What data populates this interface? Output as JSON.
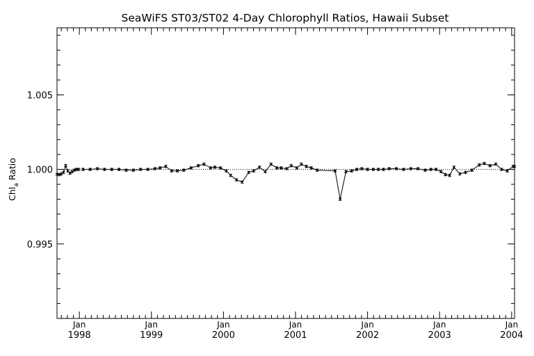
{
  "chart_data": {
    "type": "line",
    "title": "SeaWiFS ST03/ST02 4-Day Chlorophyll Ratios, Hawaii Subset",
    "ylabel_main": "Chl",
    "ylabel_sub": "a",
    "ylabel_rest": " Ratio",
    "xlabel": "",
    "ylim": [
      0.99,
      1.0095
    ],
    "xlim": [
      1997.69,
      2004.04
    ],
    "y_ticks": [
      {
        "value": 0.995,
        "label": "0.995"
      },
      {
        "value": 1.0,
        "label": "1.000"
      },
      {
        "value": 1.005,
        "label": "1.005"
      }
    ],
    "x_ticks": [
      {
        "value": 1998.0,
        "month": "Jan",
        "year": "1998"
      },
      {
        "value": 1999.0,
        "month": "Jan",
        "year": "1999"
      },
      {
        "value": 2000.0,
        "month": "Jan",
        "year": "2000"
      },
      {
        "value": 2001.0,
        "month": "Jan",
        "year": "2001"
      },
      {
        "value": 2002.0,
        "month": "Jan",
        "year": "2002"
      },
      {
        "value": 2003.0,
        "month": "Jan",
        "year": "2003"
      },
      {
        "value": 2004.0,
        "month": "Jan",
        "year": "2004"
      }
    ],
    "reference_line": 1.0,
    "grid": false,
    "series": [
      {
        "x": [
          1997.69,
          1997.72,
          1997.75,
          1997.78,
          1997.81,
          1997.84,
          1997.87,
          1997.9,
          1997.93,
          1997.96,
          1997.99,
          2004.04
        ],
        "y": [
          0.99968,
          0.99965,
          0.9997,
          0.9998,
          1.00025,
          0.9999,
          0.99975,
          0.99985,
          0.99995,
          1.0,
          1.0,
          1.0002
        ],
        "segment": "early"
      },
      {
        "x": [
          1998.05,
          1998.15,
          1998.25,
          1998.35,
          1998.45,
          1998.55,
          1998.65,
          1998.75,
          1998.85,
          1998.95,
          1999.05,
          1999.12,
          1999.2,
          1999.28,
          1999.36,
          1999.45,
          1999.55,
          1999.65,
          1999.73,
          1999.82,
          1999.88,
          1999.96,
          2000.04,
          2000.1,
          2000.18,
          2000.26,
          2000.35,
          2000.42,
          2000.5,
          2000.58,
          2000.66,
          2000.74,
          2000.8,
          2000.88,
          2000.94,
          2001.02,
          2001.08,
          2001.15,
          2001.22,
          2001.3,
          2001.55,
          2001.62,
          2001.7,
          2001.78,
          2001.85,
          2001.92,
          2002.0,
          2002.08,
          2002.15,
          2002.22,
          2002.3,
          2002.4,
          2002.5,
          2002.6,
          2002.7,
          2002.8,
          2002.88,
          2002.95,
          2003.02,
          2003.08,
          2003.14,
          2003.2,
          2003.28,
          2003.36,
          2003.45,
          2003.55,
          2003.62,
          2003.7,
          2003.78,
          2003.86,
          2003.94,
          2004.02
        ],
        "y": [
          1.0,
          1.0,
          1.00005,
          1.0,
          1.0,
          1.0,
          0.99995,
          0.99995,
          1.0,
          1.0,
          1.00005,
          1.0001,
          1.0002,
          0.9999,
          0.9999,
          0.99995,
          1.0001,
          1.00025,
          1.00035,
          1.0001,
          1.00015,
          1.0001,
          0.9999,
          0.9996,
          0.9993,
          0.99915,
          0.9998,
          0.9999,
          1.00015,
          0.99985,
          1.00035,
          1.0001,
          1.0001,
          1.00005,
          1.00025,
          1.0001,
          1.00035,
          1.0002,
          1.0001,
          0.99995,
          0.9999,
          0.998,
          0.99985,
          0.9999,
          1.0,
          1.00005,
          1.0,
          1.0,
          1.0,
          1.0,
          1.00005,
          1.00005,
          1.0,
          1.00005,
          1.00005,
          0.99995,
          1.0,
          1.0,
          0.99985,
          0.99965,
          0.9996,
          1.00015,
          0.9997,
          0.9998,
          0.99995,
          1.0003,
          1.0004,
          1.00025,
          1.00035,
          1.0,
          0.9999,
          1.0002
        ],
        "segment": "main"
      }
    ]
  }
}
